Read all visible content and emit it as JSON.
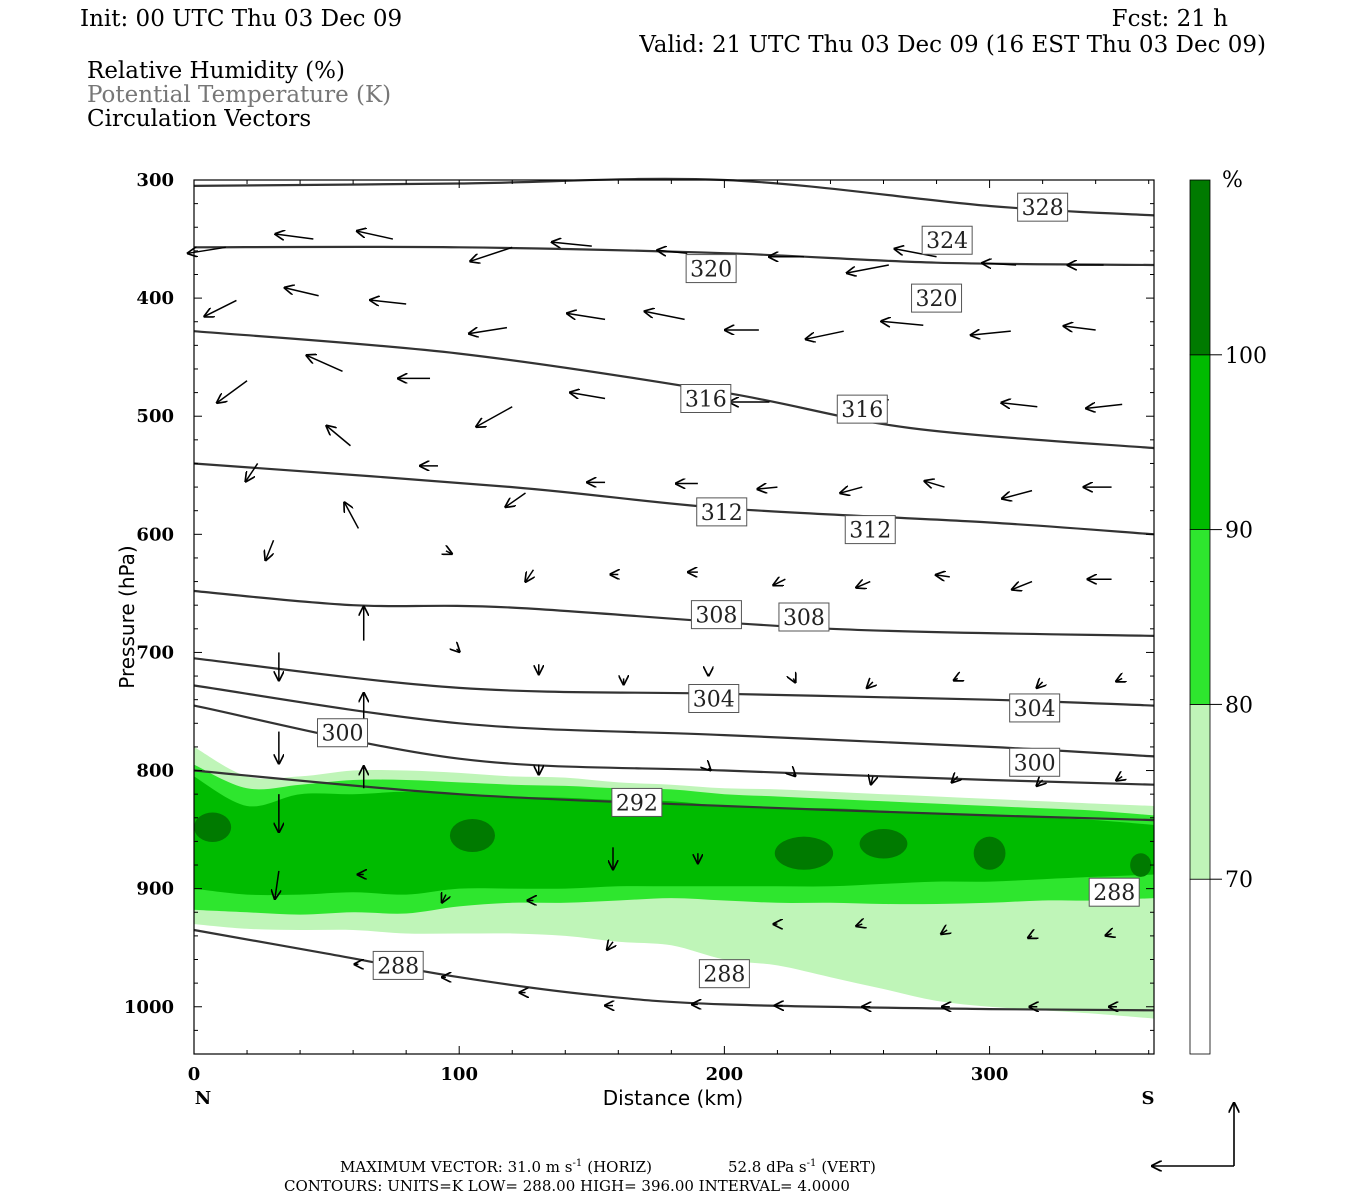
{
  "header": {
    "init": "Init: 00 UTC Thu 03 Dec 09",
    "fcst": "Fcst:   21 h",
    "valid": "Valid: 21 UTC Thu 03 Dec 09 (16 EST Thu 03 Dec 09)",
    "fields": [
      "Relative Humidity (%)",
      "Potential Temperature (K)",
      "Circulation Vectors"
    ]
  },
  "footer": {
    "max_vector": "MAXIMUM VECTOR:  31.0 m s",
    "max_vector_exp": "-1",
    "horiz": "(HORIZ)",
    "vert_value": "52.8 dPa s",
    "vert_exp": "-1",
    "vert": "(VERT)",
    "contours": "CONTOURS:  UNITS=K  LOW=  288.00       HIGH=  396.00       INTERVAL=    4.0000"
  },
  "chart_data": {
    "type": "cross-section",
    "xlabel": "Distance (km)",
    "ylabel": "Pressure (hPa)",
    "x_end_labels": [
      "N",
      "S"
    ],
    "xlim": [
      0,
      362
    ],
    "ylim": [
      1040,
      300
    ],
    "x_ticks": [
      0,
      100,
      200,
      300
    ],
    "y_ticks": [
      300,
      400,
      500,
      600,
      700,
      800,
      900,
      1000
    ],
    "grid": false,
    "colors": {
      "contour": "#333333",
      "rh_70_80": "#bff5b8",
      "rh_80_90": "#2ee62e",
      "rh_90_100": "#00bb00",
      "rh_100": "#007a00"
    },
    "colorbar": {
      "unit": "%",
      "levels": [
        70,
        80,
        90,
        100
      ],
      "colors": [
        "#ffffff",
        "#bff5b8",
        "#2ee62e",
        "#00bb00",
        "#007a00"
      ]
    },
    "rh_bands": {
      "x": [
        0,
        20,
        40,
        60,
        80,
        100,
        120,
        140,
        160,
        180,
        200,
        220,
        240,
        260,
        280,
        300,
        320,
        340,
        362
      ],
      "rh70_top": [
        780,
        805,
        805,
        800,
        800,
        802,
        805,
        806,
        810,
        812,
        815,
        816,
        818,
        820,
        822,
        824,
        826,
        828,
        830
      ],
      "rh80_top": [
        795,
        815,
        812,
        808,
        808,
        810,
        812,
        813,
        815,
        816,
        820,
        822,
        824,
        826,
        828,
        830,
        832,
        834,
        838
      ],
      "rh90_top": [
        805,
        830,
        820,
        820,
        818,
        820,
        822,
        823,
        825,
        826,
        830,
        832,
        832,
        834,
        836,
        838,
        840,
        842,
        846
      ],
      "rh90_bot": [
        900,
        905,
        905,
        903,
        905,
        900,
        900,
        900,
        898,
        898,
        898,
        898,
        898,
        896,
        894,
        894,
        892,
        890,
        888
      ],
      "rh80_bot": [
        918,
        920,
        922,
        920,
        921,
        915,
        912,
        912,
        910,
        908,
        910,
        912,
        912,
        913,
        913,
        912,
        910,
        910,
        908
      ],
      "rh70_bot": [
        930,
        934,
        935,
        935,
        938,
        938,
        938,
        940,
        945,
        948,
        960,
        965,
        975,
        985,
        995,
        1000,
        1003,
        1006,
        1010
      ]
    },
    "rh100_patches": [
      {
        "x": 105,
        "p": 855,
        "w": 17,
        "h": 28
      },
      {
        "x": 7,
        "p": 848,
        "w": 14,
        "h": 25
      },
      {
        "x": 230,
        "p": 870,
        "w": 22,
        "h": 28
      },
      {
        "x": 260,
        "p": 862,
        "w": 18,
        "h": 25
      },
      {
        "x": 300,
        "p": 870,
        "w": 12,
        "h": 28
      },
      {
        "x": 357,
        "p": 880,
        "w": 8,
        "h": 20
      }
    ],
    "theta_contours": [
      {
        "x": [
          0,
          100,
          200,
          300,
          362
        ],
        "p": [
          305,
          303,
          300,
          322,
          330
        ]
      },
      {
        "x": [
          0,
          100,
          200,
          280,
          362
        ],
        "p": [
          357,
          357,
          362,
          370,
          372
        ]
      },
      {
        "x": [
          0,
          100,
          200,
          270,
          362
        ],
        "p": [
          428,
          447,
          480,
          510,
          527
        ]
      },
      {
        "x": [
          0,
          120,
          200,
          300,
          362
        ],
        "p": [
          540,
          560,
          578,
          590,
          600
        ]
      },
      {
        "x": [
          0,
          60,
          120,
          240,
          362
        ],
        "p": [
          648,
          660,
          662,
          680,
          686
        ]
      },
      {
        "x": [
          0,
          100,
          200,
          300,
          362
        ],
        "p": [
          705,
          730,
          735,
          740,
          745
        ]
      },
      {
        "x": [
          0,
          100,
          200,
          300,
          362
        ],
        "p": [
          728,
          760,
          770,
          780,
          788
        ]
      },
      {
        "x": [
          0,
          100,
          200,
          300,
          362
        ],
        "p": [
          745,
          790,
          800,
          808,
          812
        ]
      },
      {
        "x": [
          0,
          100,
          200,
          300,
          362
        ],
        "p": [
          800,
          820,
          830,
          838,
          842
        ]
      },
      {
        "x": [
          0,
          50,
          100,
          150,
          200,
          300,
          362
        ],
        "p": [
          935,
          955,
          975,
          990,
          998,
          1002,
          1003
        ]
      }
    ],
    "contour_labels": [
      {
        "text": "328",
        "x": 320,
        "p": 323
      },
      {
        "text": "324",
        "x": 284,
        "p": 351
      },
      {
        "text": "320",
        "x": 195,
        "p": 375
      },
      {
        "text": "320",
        "x": 280,
        "p": 400
      },
      {
        "text": "316",
        "x": 193,
        "p": 485
      },
      {
        "text": "316",
        "x": 252,
        "p": 494
      },
      {
        "text": "312",
        "x": 199,
        "p": 581
      },
      {
        "text": "312",
        "x": 255,
        "p": 596
      },
      {
        "text": "308",
        "x": 197,
        "p": 668
      },
      {
        "text": "308",
        "x": 230,
        "p": 670
      },
      {
        "text": "304",
        "x": 196,
        "p": 739
      },
      {
        "text": "304",
        "x": 317,
        "p": 747
      },
      {
        "text": "300",
        "x": 56,
        "p": 768
      },
      {
        "text": "300",
        "x": 317,
        "p": 793
      },
      {
        "text": "292",
        "x": 167,
        "p": 827
      },
      {
        "text": "288",
        "x": 347,
        "p": 903
      },
      {
        "text": "288",
        "x": 77,
        "p": 965
      },
      {
        "text": "288",
        "x": 200,
        "p": 972
      }
    ],
    "vectors": [
      {
        "x": 12,
        "p": 357,
        "u": -38,
        "v": 6
      },
      {
        "x": 45,
        "p": 350,
        "u": -38,
        "v": -5
      },
      {
        "x": 75,
        "p": 350,
        "u": -36,
        "v": -8
      },
      {
        "x": 120,
        "p": 357,
        "u": -42,
        "v": 14
      },
      {
        "x": 150,
        "p": 356,
        "u": -40,
        "v": -4
      },
      {
        "x": 186,
        "p": 362,
        "u": -30,
        "v": -3
      },
      {
        "x": 230,
        "p": 365,
        "u": -35,
        "v": 0
      },
      {
        "x": 262,
        "p": 372,
        "u": -42,
        "v": 8
      },
      {
        "x": 280,
        "p": 365,
        "u": -42,
        "v": -8
      },
      {
        "x": 310,
        "p": 372,
        "u": -34,
        "v": -2
      },
      {
        "x": 343,
        "p": 372,
        "u": -36,
        "v": 0
      },
      {
        "x": 16,
        "p": 402,
        "u": -32,
        "v": 16
      },
      {
        "x": 47,
        "p": 398,
        "u": -34,
        "v": -8
      },
      {
        "x": 80,
        "p": 405,
        "u": -36,
        "v": -4
      },
      {
        "x": 118,
        "p": 425,
        "u": -38,
        "v": 6
      },
      {
        "x": 155,
        "p": 418,
        "u": -38,
        "v": -6
      },
      {
        "x": 185,
        "p": 418,
        "u": -40,
        "v": -8
      },
      {
        "x": 213,
        "p": 427,
        "u": -34,
        "v": 0
      },
      {
        "x": 245,
        "p": 428,
        "u": -38,
        "v": 8
      },
      {
        "x": 275,
        "p": 423,
        "u": -42,
        "v": -4
      },
      {
        "x": 308,
        "p": 428,
        "u": -40,
        "v": 4
      },
      {
        "x": 340,
        "p": 427,
        "u": -32,
        "v": -4
      },
      {
        "x": 20,
        "p": 470,
        "u": -30,
        "v": 22
      },
      {
        "x": 56,
        "p": 462,
        "u": -36,
        "v": -16
      },
      {
        "x": 89,
        "p": 468,
        "u": -32,
        "v": 0
      },
      {
        "x": 120,
        "p": 492,
        "u": -36,
        "v": 20
      },
      {
        "x": 155,
        "p": 485,
        "u": -35,
        "v": -6
      },
      {
        "x": 217,
        "p": 488,
        "u": -40,
        "v": 0
      },
      {
        "x": 262,
        "p": 486,
        "u": -42,
        "v": 6
      },
      {
        "x": 318,
        "p": 492,
        "u": -36,
        "v": -4
      },
      {
        "x": 350,
        "p": 490,
        "u": -36,
        "v": 4
      },
      {
        "x": 24,
        "p": 540,
        "u": -12,
        "v": 18
      },
      {
        "x": 59,
        "p": 525,
        "u": -24,
        "v": -20
      },
      {
        "x": 92,
        "p": 542,
        "u": -18,
        "v": 0
      },
      {
        "x": 125,
        "p": 565,
        "u": -20,
        "v": 14
      },
      {
        "x": 155,
        "p": 556,
        "u": -18,
        "v": 0
      },
      {
        "x": 190,
        "p": 557,
        "u": -22,
        "v": 0
      },
      {
        "x": 220,
        "p": 560,
        "u": -20,
        "v": 2
      },
      {
        "x": 252,
        "p": 560,
        "u": -22,
        "v": 6
      },
      {
        "x": 283,
        "p": 560,
        "u": -20,
        "v": -6
      },
      {
        "x": 316,
        "p": 563,
        "u": -30,
        "v": 8
      },
      {
        "x": 346,
        "p": 560,
        "u": -28,
        "v": 0
      },
      {
        "x": 30,
        "p": 605,
        "u": -8,
        "v": 20
      },
      {
        "x": 62,
        "p": 595,
        "u": -14,
        "v": -26
      },
      {
        "x": 95,
        "p": 614,
        "u": 6,
        "v": 3
      },
      {
        "x": 128,
        "p": 630,
        "u": -8,
        "v": 12
      },
      {
        "x": 160,
        "p": 634,
        "u": -8,
        "v": 0
      },
      {
        "x": 190,
        "p": 632,
        "u": -10,
        "v": 0
      },
      {
        "x": 223,
        "p": 638,
        "u": -12,
        "v": 6
      },
      {
        "x": 255,
        "p": 640,
        "u": -14,
        "v": 6
      },
      {
        "x": 285,
        "p": 636,
        "u": -14,
        "v": -2
      },
      {
        "x": 316,
        "p": 640,
        "u": -20,
        "v": 8
      },
      {
        "x": 346,
        "p": 638,
        "u": -24,
        "v": 0
      },
      {
        "x": 32,
        "p": 700,
        "u": 0,
        "v": 28
      },
      {
        "x": 64,
        "p": 690,
        "u": 0,
        "v": -34
      },
      {
        "x": 99,
        "p": 697,
        "u": 3,
        "v": 3
      },
      {
        "x": 130,
        "p": 710,
        "u": 0,
        "v": 10
      },
      {
        "x": 162,
        "p": 722,
        "u": 0,
        "v": 6
      },
      {
        "x": 194,
        "p": 718,
        "u": 0,
        "v": 2
      },
      {
        "x": 226,
        "p": 722,
        "u": 2,
        "v": 4
      },
      {
        "x": 256,
        "p": 725,
        "u": -6,
        "v": 6
      },
      {
        "x": 288,
        "p": 722,
        "u": -4,
        "v": 2
      },
      {
        "x": 320,
        "p": 725,
        "u": -6,
        "v": 6
      },
      {
        "x": 350,
        "p": 722,
        "u": -6,
        "v": 3
      },
      {
        "x": 32,
        "p": 767,
        "u": 0,
        "v": 32
      },
      {
        "x": 64,
        "p": 758,
        "u": 0,
        "v": -28
      },
      {
        "x": 130,
        "p": 795,
        "u": 0,
        "v": 10
      },
      {
        "x": 194,
        "p": 798,
        "u": 2,
        "v": 2
      },
      {
        "x": 226,
        "p": 803,
        "u": 2,
        "v": 2
      },
      {
        "x": 256,
        "p": 805,
        "u": -2,
        "v": 8
      },
      {
        "x": 288,
        "p": 805,
        "u": -6,
        "v": 6
      },
      {
        "x": 320,
        "p": 808,
        "u": -6,
        "v": 6
      },
      {
        "x": 350,
        "p": 805,
        "u": -6,
        "v": 4
      },
      {
        "x": 32,
        "p": 820,
        "u": 0,
        "v": 38
      },
      {
        "x": 64,
        "p": 815,
        "u": 0,
        "v": -22
      },
      {
        "x": 32,
        "p": 885,
        "u": -4,
        "v": 28
      },
      {
        "x": 64,
        "p": 888,
        "u": -6,
        "v": 0
      },
      {
        "x": 95,
        "p": 905,
        "u": -4,
        "v": 8
      },
      {
        "x": 128,
        "p": 910,
        "u": -6,
        "v": 0
      },
      {
        "x": 158,
        "p": 865,
        "u": 0,
        "v": 22
      },
      {
        "x": 190,
        "p": 870,
        "u": 0,
        "v": 10
      },
      {
        "x": 220,
        "p": 930,
        "u": -4,
        "v": 0
      },
      {
        "x": 252,
        "p": 930,
        "u": -6,
        "v": 2
      },
      {
        "x": 284,
        "p": 935,
        "u": -6,
        "v": 4
      },
      {
        "x": 316,
        "p": 940,
        "u": -4,
        "v": 2
      },
      {
        "x": 346,
        "p": 938,
        "u": -6,
        "v": 2
      },
      {
        "x": 158,
        "p": 945,
        "u": -6,
        "v": 8
      },
      {
        "x": 62,
        "p": 964,
        "u": -4,
        "v": 0
      },
      {
        "x": 95,
        "p": 975,
        "u": -4,
        "v": 0
      },
      {
        "x": 125,
        "p": 988,
        "u": -6,
        "v": 0
      },
      {
        "x": 158,
        "p": 999,
        "u": -8,
        "v": 0
      },
      {
        "x": 190,
        "p": 998,
        "u": -6,
        "v": 0
      },
      {
        "x": 222,
        "p": 999,
        "u": -8,
        "v": 0
      },
      {
        "x": 255,
        "p": 1000,
        "u": -8,
        "v": 0
      },
      {
        "x": 285,
        "p": 1000,
        "u": -8,
        "v": 0
      },
      {
        "x": 318,
        "p": 1000,
        "u": -8,
        "v": 0
      },
      {
        "x": 348,
        "p": 1000,
        "u": -8,
        "v": 0
      }
    ]
  }
}
